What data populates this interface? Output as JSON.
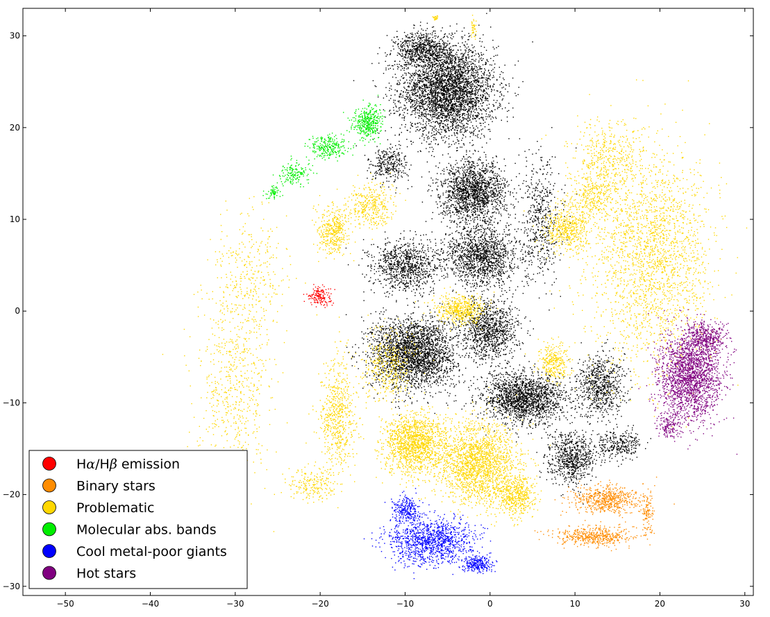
{
  "chart_data": {
    "type": "scatter",
    "title": "",
    "xlabel": "",
    "ylabel": "",
    "xlim": [
      -55,
      31
    ],
    "ylim": [
      -31,
      33
    ],
    "xticks": [
      -50,
      -40,
      -30,
      -20,
      -10,
      0,
      10,
      20,
      30
    ],
    "yticks": [
      -30,
      -20,
      -10,
      0,
      10,
      20,
      30
    ],
    "legend_position": "lower-left",
    "grid": false,
    "series": [
      {
        "name": "Hα/Hβ emission",
        "legend_main": "H",
        "legend_greek1": "α",
        "legend_mid": "/H",
        "legend_greek2": "β",
        "legend_tail": " emission",
        "color": "#ff0000",
        "clusters": [
          {
            "center": [
              -20.0,
              1.7
            ],
            "spread": [
              1.3,
              0.9
            ],
            "count": 160
          }
        ]
      },
      {
        "name": "Binary stars",
        "color": "#ff8c00",
        "clusters": [
          {
            "center": [
              13.5,
              -20.5
            ],
            "spread": [
              3.5,
              1.4
            ],
            "count": 600
          },
          {
            "center": [
              12.0,
              -24.5
            ],
            "spread": [
              4.0,
              1.0
            ],
            "count": 500
          },
          {
            "center": [
              18.5,
              -22.0
            ],
            "spread": [
              0.6,
              2.2
            ],
            "count": 120
          }
        ]
      },
      {
        "name": "Problematic",
        "color": "#ffd700",
        "clusters": [
          {
            "center": [
              -9.0,
              -14.5
            ],
            "spread": [
              3.2,
              3.0
            ],
            "count": 1400
          },
          {
            "center": [
              -1.5,
              -16.5
            ],
            "spread": [
              4.2,
              4.0
            ],
            "count": 1900
          },
          {
            "center": [
              3.0,
              -20.0
            ],
            "spread": [
              2.0,
              2.0
            ],
            "count": 500
          },
          {
            "center": [
              -3.5,
              0.2
            ],
            "spread": [
              2.5,
              1.4
            ],
            "count": 500
          },
          {
            "center": [
              -18.5,
              8.8
            ],
            "spread": [
              1.6,
              2.4
            ],
            "count": 400
          },
          {
            "center": [
              -14.0,
              11.5
            ],
            "spread": [
              2.5,
              2.2
            ],
            "count": 350
          },
          {
            "center": [
              9.0,
              9.0
            ],
            "spread": [
              2.5,
              2.2
            ],
            "count": 500
          },
          {
            "center": [
              12.0,
              12.5
            ],
            "spread": [
              2.5,
              2.2
            ],
            "count": 300
          },
          {
            "center": [
              7.5,
              -5.5
            ],
            "spread": [
              1.5,
              2.2
            ],
            "count": 300
          },
          {
            "center": [
              -18.0,
              -11.5
            ],
            "spread": [
              1.8,
              5.5
            ],
            "count": 600
          },
          {
            "center": [
              -21.0,
              -19.0
            ],
            "spread": [
              2.8,
              1.6
            ],
            "count": 200
          },
          {
            "center": [
              -30.0,
              -8.0
            ],
            "spread": [
              4.0,
              9.0
            ],
            "count": 600
          },
          {
            "center": [
              -28.0,
              4.0
            ],
            "spread": [
              4.0,
              6.0
            ],
            "count": 300
          },
          {
            "center": [
              19.0,
              6.0
            ],
            "spread": [
              6.5,
              11.0
            ],
            "count": 2200
          },
          {
            "center": [
              14.0,
              17.0
            ],
            "spread": [
              4.0,
              3.5
            ],
            "count": 400
          },
          {
            "center": [
              -12.0,
              -6.0
            ],
            "spread": [
              3.0,
              3.5
            ],
            "count": 400
          },
          {
            "center": [
              -6.5,
              32.0
            ],
            "spread": [
              0.3,
              0.2
            ],
            "count": 25
          },
          {
            "center": [
              -2.0,
              31.0
            ],
            "spread": [
              0.3,
              1.2
            ],
            "count": 40
          }
        ]
      },
      {
        "name": "Molecular abs. bands",
        "color": "#00ee00",
        "clusters": [
          {
            "center": [
              -14.5,
              20.5
            ],
            "spread": [
              1.5,
              1.6
            ],
            "count": 380
          },
          {
            "center": [
              -19.0,
              18.0
            ],
            "spread": [
              2.0,
              1.2
            ],
            "count": 250
          },
          {
            "center": [
              -23.0,
              15.0
            ],
            "spread": [
              1.6,
              1.2
            ],
            "count": 160
          },
          {
            "center": [
              -25.5,
              13.0
            ],
            "spread": [
              0.8,
              0.6
            ],
            "count": 60
          }
        ]
      },
      {
        "name": "Cool metal-poor giants",
        "color": "#0000ff",
        "clusters": [
          {
            "center": [
              -7.0,
              -25.0
            ],
            "spread": [
              4.5,
              2.2
            ],
            "count": 1200
          },
          {
            "center": [
              -10.0,
              -21.5
            ],
            "spread": [
              1.5,
              1.3
            ],
            "count": 250
          },
          {
            "center": [
              -1.5,
              -27.5
            ],
            "spread": [
              1.5,
              0.8
            ],
            "count": 250
          }
        ]
      },
      {
        "name": "Hot stars",
        "color": "#800080",
        "clusters": [
          {
            "center": [
              23.5,
              -7.0
            ],
            "spread": [
              3.3,
              4.3
            ],
            "count": 2100
          },
          {
            "center": [
              25.5,
              -3.0
            ],
            "spread": [
              2.0,
              1.5
            ],
            "count": 400
          },
          {
            "center": [
              21.0,
              -12.5
            ],
            "spread": [
              1.2,
              1.2
            ],
            "count": 150
          }
        ]
      },
      {
        "name": "",
        "color": "#000000",
        "clusters": [
          {
            "center": [
              -5.0,
              24.0
            ],
            "spread": [
              5.0,
              4.5
            ],
            "count": 3600
          },
          {
            "center": [
              -8.0,
              28.5
            ],
            "spread": [
              3.0,
              1.8
            ],
            "count": 700
          },
          {
            "center": [
              -9.0,
              -4.5
            ],
            "spread": [
              4.5,
              3.5
            ],
            "count": 2600
          },
          {
            "center": [
              0.0,
              -2.0
            ],
            "spread": [
              3.0,
              3.0
            ],
            "count": 1000
          },
          {
            "center": [
              -2.0,
              13.0
            ],
            "spread": [
              3.5,
              3.0
            ],
            "count": 1600
          },
          {
            "center": [
              -1.0,
              6.0
            ],
            "spread": [
              4.0,
              3.0
            ],
            "count": 1400
          },
          {
            "center": [
              -10.0,
              5.0
            ],
            "spread": [
              3.5,
              2.5
            ],
            "count": 900
          },
          {
            "center": [
              -12.0,
              16.0
            ],
            "spread": [
              2.0,
              1.8
            ],
            "count": 300
          },
          {
            "center": [
              4.0,
              -9.5
            ],
            "spread": [
              4.5,
              2.5
            ],
            "count": 1800
          },
          {
            "center": [
              9.5,
              -16.0
            ],
            "spread": [
              2.5,
              2.5
            ],
            "count": 700
          },
          {
            "center": [
              13.0,
              -8.0
            ],
            "spread": [
              2.5,
              3.0
            ],
            "count": 700
          },
          {
            "center": [
              6.0,
              10.0
            ],
            "spread": [
              2.2,
              6.0
            ],
            "count": 500
          },
          {
            "center": [
              15.0,
              -14.5
            ],
            "spread": [
              2.5,
              1.5
            ],
            "count": 300
          }
        ]
      }
    ]
  }
}
